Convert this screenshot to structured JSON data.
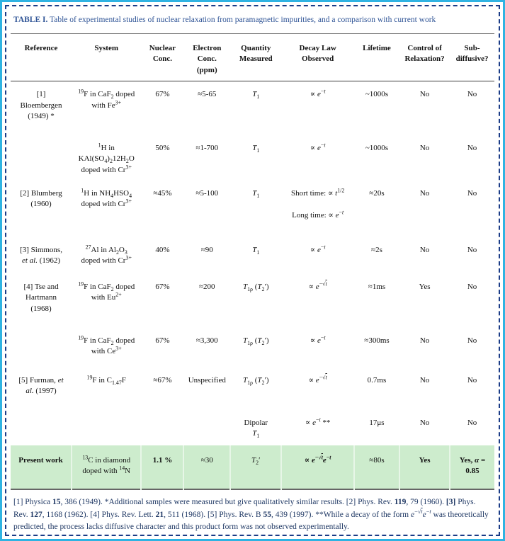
{
  "title": {
    "label": "TABLE I.",
    "text": "Table of experimental studies of nuclear relaxation from paramagnetic impurities, and a comparison with current work"
  },
  "table": {
    "columns": [
      {
        "label": "Reference"
      },
      {
        "label": "System"
      },
      {
        "label": "Nuclear\nConc."
      },
      {
        "label": "Electron\nConc.\n(ppm)"
      },
      {
        "label": "Quantity\nMeasured"
      },
      {
        "label": "Decay Law\nObserved"
      },
      {
        "label": "Lifetime"
      },
      {
        "label": "Control of\nRelaxation?"
      },
      {
        "label": "Sub-\ndiffusive?"
      }
    ],
    "rows": [
      {
        "cells": [
          "[1]\nBloembergen\n(1949) *",
          "^{19}F in CaF_{2} doped\nwith Fe^{3+}",
          "67%",
          "≈5-65",
          "i{T}_{1}",
          "∝ i{e}^{−i{t}}",
          "~1000s",
          "No",
          "No"
        ]
      },
      {
        "cells": [
          "",
          "^{1}H in\nKAl(SO_{4})_{2}12H_{2}O\ndoped with Cr^{3+}",
          "50%",
          "≈1-700",
          "i{T}_{1}",
          "∝ i{e}^{−i{t}}",
          "~1000s",
          "No",
          "No"
        ]
      },
      {
        "cells": [
          "[2] Blumberg\n(1960)",
          "^{1}H in NH_{4}HSO_{4}\ndoped with Cr^{3+}",
          "≈45%",
          "≈5-100",
          "i{T}_{1}",
          "Short time: ∝ i{t}^{1/2}\n\nLong time: ∝ i{e}^{−i{t}}",
          "≈20s",
          "No",
          "No"
        ]
      },
      {
        "cells": [
          "[3] Simmons,\ni{et al.} (1962)",
          "^{27}Al in Al_{2}O_{3}\ndoped with Cr^{3+}",
          "40%",
          "≈90",
          "i{T}_{1}",
          "∝ i{e}^{−i{t}}",
          "≈2s",
          "No",
          "No"
        ]
      },
      {
        "cells": [
          "[4] Tse and\nHartmann\n(1968)",
          "^{19}F in CaF_{2} doped\nwith Eu^{2+}",
          "67%",
          "≈200",
          "i{T}_{1ρ} (i{T}_{2}′)",
          "∝ i{e}^{−√~t~}",
          "≈1ms",
          "Yes",
          "No"
        ]
      },
      {
        "cells": [
          "",
          "^{19}F in CaF_{2} doped\nwith Ce^{3+}",
          "67%",
          "≈3,300",
          "i{T}_{1ρ} (i{T}_{2}′)",
          "∝ i{e}^{−i{t}}",
          "≈300ms",
          "No",
          "No"
        ]
      },
      {
        "cells": [
          "[5] Furman, i{et\nal.} (1997)",
          "^{19}F in C_{1.47}F",
          "≈67%",
          "Unspecified",
          "i{T}_{1ρ} (i{T}_{2}′)",
          "∝ i{e}^{−√~t~}",
          "0.7ms",
          "No",
          "No"
        ]
      },
      {
        "cells": [
          "",
          "",
          "",
          "",
          "Dipolar\ni{T}_{1}",
          "∝ i{e}^{−i{t}} **",
          "17μs",
          "No",
          "No"
        ]
      },
      {
        "cells": [
          "Present work",
          "^{13}C in diamond\ndoped with ^{14}N",
          "1.1 %",
          "≈30",
          "i{T}_{2}′",
          "∝ i{e}^{−√~t~}i{e}^{−i{t}}",
          "≈80s",
          "Yes",
          "Yes, i{α} =\n0.85"
        ],
        "bold": [
          0,
          2,
          5,
          7,
          8
        ],
        "highlight": true
      }
    ]
  },
  "footnote": {
    "text": "[1] Physica b{15}, 386 (1949). *Additional samples were measured but give qualitatively similar results. [2] Phys. Rev. b{119}, 79 (1960). b{[3]} Phys. Rev. b{127}, 1168 (1962). [4] Phys. Rev. Lett. b{21}, 511 (1968). [5] Phys. Rev. B b{55}, 439 (1997). **While a decay of the form i{e}^{−√~t~}i{e}^{−i{t}} was theoretically predicted, the process lacks diffusive character and this product form was not observed experimentally."
  },
  "colors": {
    "frame": "#2fb3e2",
    "dash": "#1b3c87",
    "title": "#2F5496",
    "footnote": "#1F3864",
    "highlight_bg": "#cdeccd"
  }
}
